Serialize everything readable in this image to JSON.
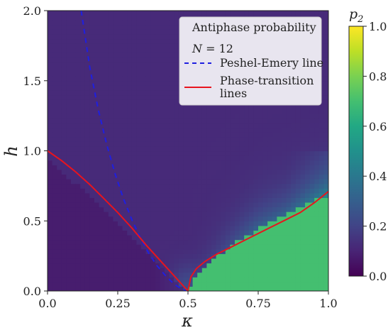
{
  "chart_data": {
    "type": "heatmap",
    "title": "",
    "xlabel": "κ",
    "ylabel": "h",
    "xlim": [
      0.0,
      1.0
    ],
    "ylim": [
      0.0,
      2.0
    ],
    "x_ticks": [
      "0.0",
      "0.25",
      "0.5",
      "0.75",
      "1.0"
    ],
    "y_ticks": [
      "0.0",
      "0.5",
      "1.0",
      "1.5",
      "2.0"
    ],
    "heatmap_description_values": {
      "low_region_value": 0.08,
      "antiphase_region_value": 0.7,
      "background_value": 0.12
    },
    "colorbar": {
      "label": "p2",
      "label_base": "p",
      "label_sub": "2",
      "range": [
        0.0,
        1.0
      ],
      "ticks": [
        "0.0",
        "0.2",
        "0.4",
        "0.6",
        "0.8",
        "1.0"
      ],
      "colormap": "viridis"
    },
    "legend": {
      "title": "Antiphase probability",
      "subtitle": "N = 12",
      "subtitle_var": "N",
      "subtitle_rest": " = 12",
      "placement": "top-right",
      "entries": [
        {
          "label": "Peshel-Emery line",
          "color": "#1f1fe0",
          "style": "dashed"
        },
        {
          "label_line1": "Phase-transition",
          "label_line2": "lines",
          "color": "#e8141e",
          "style": "solid"
        }
      ]
    },
    "series": [
      {
        "name": "Peshel-Emery line",
        "color": "#1f1fe0",
        "style": "dashed",
        "x": [
          0.12,
          0.15,
          0.18,
          0.21,
          0.24,
          0.27,
          0.3,
          0.33,
          0.36,
          0.39,
          0.42,
          0.45,
          0.48,
          0.5
        ],
        "y": [
          2.0,
          1.6,
          1.3,
          1.05,
          0.84,
          0.66,
          0.51,
          0.38,
          0.27,
          0.18,
          0.11,
          0.05,
          0.01,
          0.0
        ]
      },
      {
        "name": "Phase-transition lines",
        "color": "#e8141e",
        "style": "solid",
        "x": [
          0.0,
          0.05,
          0.1,
          0.15,
          0.2,
          0.25,
          0.3,
          0.35,
          0.4,
          0.45,
          0.5
        ],
        "y": [
          1.0,
          0.93,
          0.85,
          0.76,
          0.66,
          0.56,
          0.45,
          0.33,
          0.22,
          0.11,
          0.0
        ]
      },
      {
        "name": "Phase-transition lines (upper branch)",
        "color": "#e8141e",
        "style": "solid",
        "x": [
          0.5,
          0.51,
          0.53,
          0.56,
          0.6,
          0.65,
          0.7,
          0.75,
          0.8,
          0.85,
          0.9,
          0.95,
          1.0
        ],
        "y": [
          0.0,
          0.1,
          0.16,
          0.21,
          0.26,
          0.31,
          0.36,
          0.41,
          0.46,
          0.51,
          0.56,
          0.63,
          0.71
        ]
      }
    ]
  }
}
